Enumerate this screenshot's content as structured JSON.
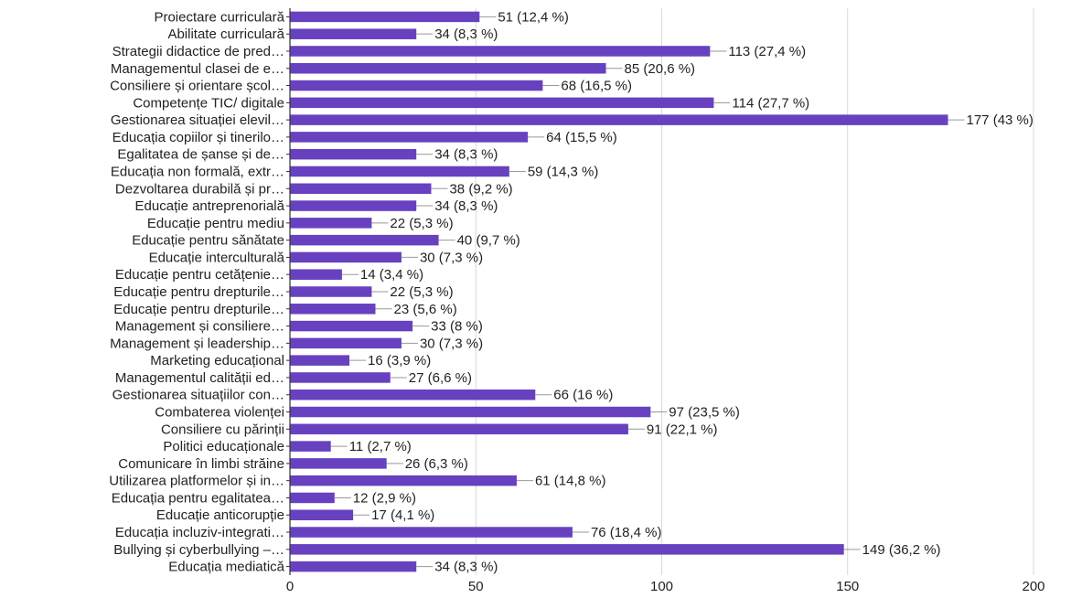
{
  "chart_data": {
    "type": "bar",
    "orientation": "horizontal",
    "categories": [
      "Proiectare curriculară",
      "Abilitate curriculară",
      "Strategii didactice de pred…",
      "Managementul clasei de e…",
      "Consiliere și orientare școl…",
      "Competențe TIC/ digitale",
      "Gestionarea situației elevil…",
      "Educația copiilor și tinerilo…",
      "Egalitatea de șanse și de…",
      "Educația non formală, extr…",
      "Dezvoltarea durabilă și pr…",
      "Educație antreprenorială",
      "Educație pentru mediu",
      "Educație pentru sănătate",
      "Educație interculturală",
      "Educație pentru cetățenie…",
      "Educație pentru drepturile…",
      "Educație pentru drepturile…",
      "Management și consiliere…",
      "Management și leadership…",
      "Marketing educațional",
      "Managementul calității ed…",
      "Gestionarea situațiilor con…",
      "Combaterea violenței",
      "Consiliere cu părinții",
      "Politici educaționale",
      "Comunicare în limbi străine",
      "Utilizarea platformelor și in…",
      "Educația pentru egalitatea…",
      "Educație anticorupție",
      "Educația incluziv-integrati…",
      "Bullying și cyberbullying –…",
      "Educația mediatică"
    ],
    "values": [
      51,
      34,
      113,
      85,
      68,
      114,
      177,
      64,
      34,
      59,
      38,
      34,
      22,
      40,
      30,
      14,
      22,
      23,
      33,
      30,
      16,
      27,
      66,
      97,
      91,
      11,
      26,
      61,
      12,
      17,
      76,
      149,
      34
    ],
    "value_labels": [
      "51 (12,4 %)",
      "34 (8,3 %)",
      "113 (27,4 %)",
      "85 (20,6 %)",
      "68 (16,5 %)",
      "114 (27,7 %)",
      "177 (43 %)",
      "64 (15,5 %)",
      "34 (8,3 %)",
      "59 (14,3 %)",
      "38 (9,2 %)",
      "34 (8,3 %)",
      "22 (5,3 %)",
      "40 (9,7 %)",
      "30 (7,3 %)",
      "14 (3,4 %)",
      "22 (5,3 %)",
      "23 (5,6 %)",
      "33 (8 %)",
      "30 (7,3 %)",
      "16 (3,9 %)",
      "27 (6,6 %)",
      "66 (16 %)",
      "97 (23,5 %)",
      "91 (22,1 %)",
      "11 (2,7 %)",
      "26 (6,3 %)",
      "61 (14,8 %)",
      "12 (2,9 %)",
      "17 (4,1 %)",
      "76 (18,4 %)",
      "149 (36,2 %)",
      "34 (8,3 %)"
    ],
    "xlim": [
      0,
      200
    ],
    "xticks": [
      0,
      50,
      100,
      150,
      200
    ],
    "xtick_labels": [
      "0",
      "50",
      "100",
      "150",
      "200"
    ],
    "grid": true,
    "bar_color": "#6741C0",
    "grid_color": "#D8D8D8",
    "axis_color": "#333333",
    "text_color": "#222222",
    "connector_color": "#999999",
    "legend": "none"
  }
}
